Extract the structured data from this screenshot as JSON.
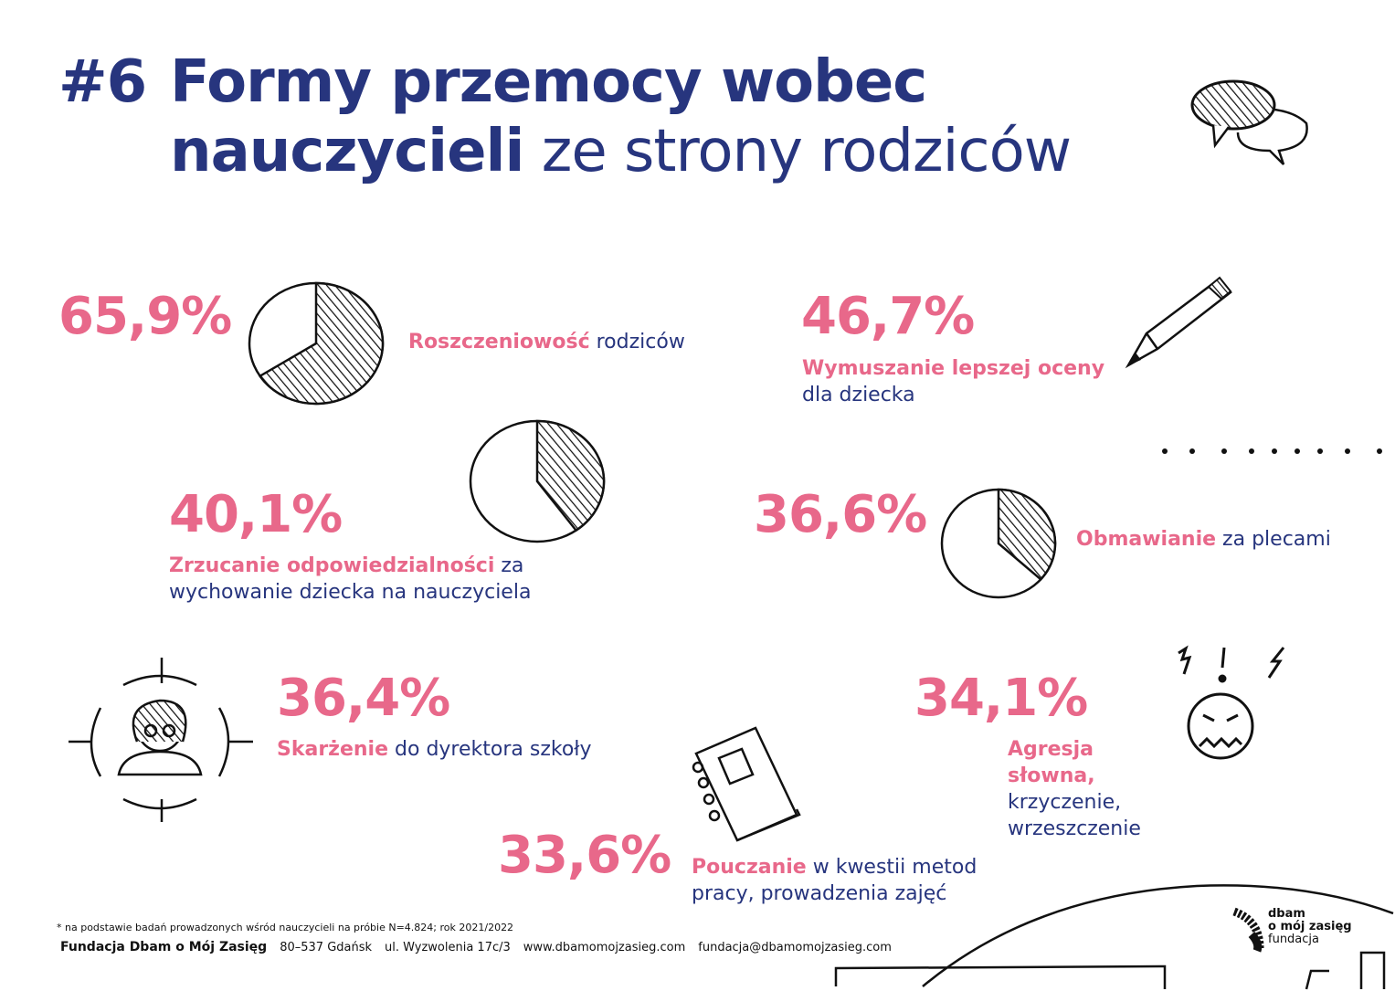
{
  "header": {
    "number": "#6",
    "title_line1": "Formy przemocy wobec",
    "title_line2_bold": "nauczycieli",
    "title_line2_rest": " ze strony rodziców"
  },
  "chart_data": {
    "type": "pie",
    "title": "#6 Formy przemocy wobec nauczycieli ze strony rodziców",
    "items": [
      {
        "value": 65.9,
        "pct": "65,9%",
        "bold": "Roszczeniowość",
        "rest": " rodziców"
      },
      {
        "value": 46.7,
        "pct": "46,7%",
        "bold": "Wymuszanie lepszej oceny",
        "rest": "dla dziecka"
      },
      {
        "value": 40.1,
        "pct": "40,1%",
        "bold": "Zrzucanie odpowiedzialności",
        "rest": " za wychowanie dziecka na nauczyciela"
      },
      {
        "value": 36.6,
        "pct": "36,6%",
        "bold": "Obmawianie",
        "rest": " za plecami"
      },
      {
        "value": 36.4,
        "pct": "36,4%",
        "bold": "Skarżenie",
        "rest": " do dyrektora szkoły"
      },
      {
        "value": 34.1,
        "pct": "34,1%",
        "bold": "Agresja słowna,",
        "rest": "krzyczenie, wrzeszczenie"
      },
      {
        "value": 33.6,
        "pct": "33,6%",
        "bold": "Pouczanie",
        "rest": " w kwestii metod pracy, prowadzenia zajęć"
      }
    ],
    "unit": "%",
    "colors": {
      "accent": "#e8688a",
      "text": "#27357e"
    }
  },
  "footer": {
    "note": "* na podstawie badań prowadzonych wśród nauczycieli na próbie N=4.824; rok 2021/2022",
    "org": "Fundacja Dbam o Mój Zasięg",
    "city": "80–537 Gdańsk",
    "street": "ul. Wyzwolenia 17c/3",
    "web": "www.dbamomojzasieg.com",
    "email": "fundacja@dbamomojzasieg.com"
  },
  "logo": {
    "line1": "dbam",
    "line2": "o mój zasięg",
    "line3": "fundacja"
  }
}
